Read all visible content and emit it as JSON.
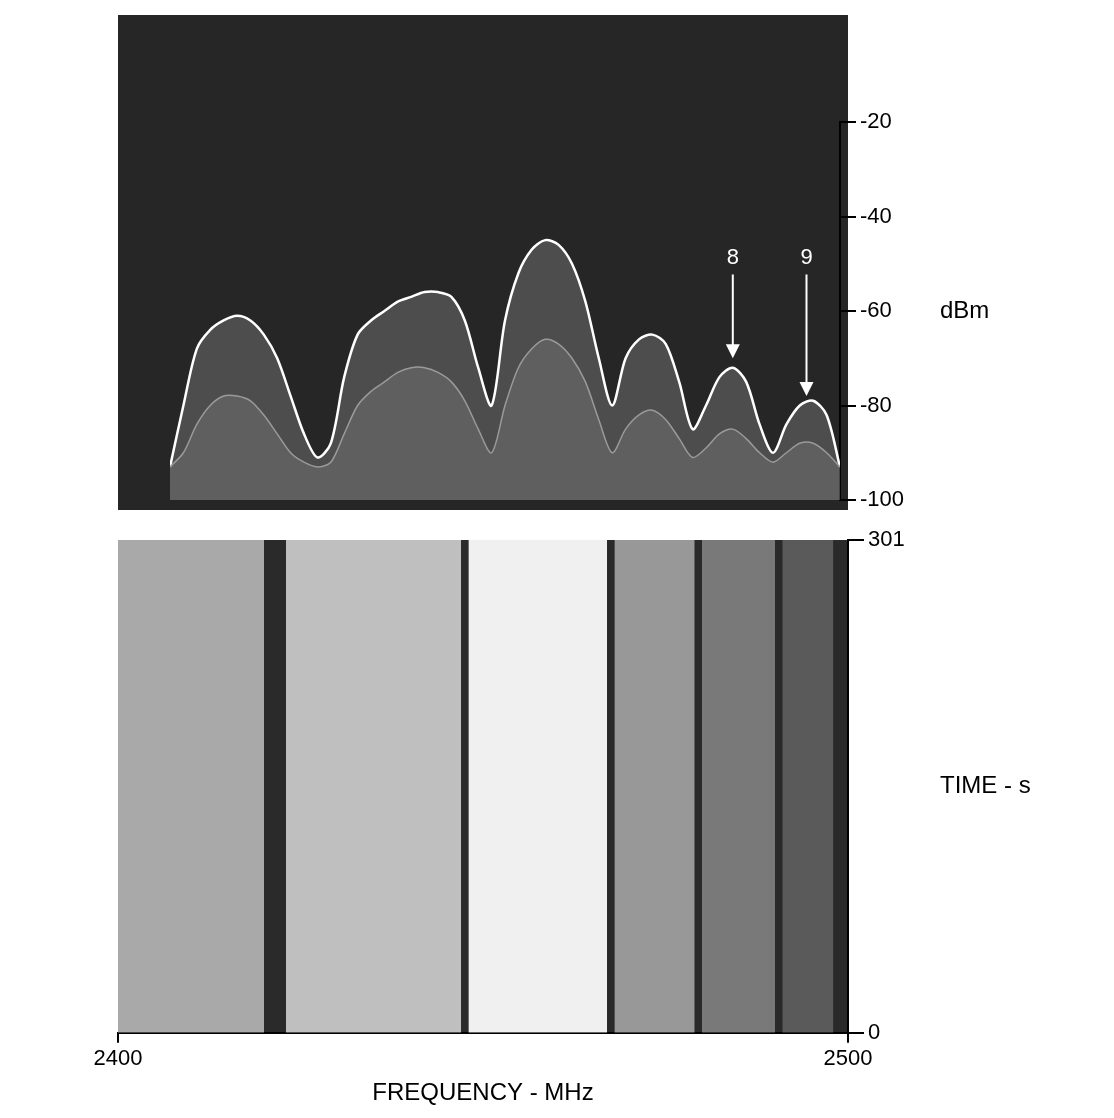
{
  "chart_data": [
    {
      "type": "line",
      "x": [
        2400,
        2402,
        2404,
        2406,
        2408,
        2410,
        2412,
        2414,
        2416,
        2418,
        2420,
        2422,
        2424,
        2426,
        2428,
        2430,
        2432,
        2434,
        2436,
        2438,
        2440,
        2442,
        2444,
        2446,
        2448,
        2450,
        2452,
        2454,
        2456,
        2458,
        2460,
        2462,
        2464,
        2466,
        2468,
        2470,
        2472,
        2474,
        2476,
        2478,
        2480,
        2482,
        2484,
        2486,
        2488,
        2490,
        2492,
        2494,
        2496,
        2498,
        2500
      ],
      "series": [
        {
          "color": "#ffffff",
          "values": [
            -93,
            -80,
            -68,
            -64,
            -62,
            -61,
            -62,
            -65,
            -70,
            -78,
            -86,
            -91,
            -88,
            -74,
            -65,
            -62,
            -60,
            -58,
            -57,
            -56,
            -56,
            -57,
            -62,
            -72,
            -80,
            -62,
            -52,
            -47,
            -45,
            -46,
            -50,
            -58,
            -70,
            -80,
            -70,
            -66,
            -65,
            -67,
            -75,
            -85,
            -80,
            -74,
            -72,
            -75,
            -84,
            -90,
            -84,
            -80,
            -79,
            -82,
            -93
          ]
        },
        {
          "color": "#9a9a9a",
          "values": [
            -93,
            -90,
            -84,
            -80,
            -78,
            -78,
            -79,
            -82,
            -86,
            -90,
            -92,
            -93,
            -92,
            -86,
            -80,
            -77,
            -75,
            -73,
            -72,
            -72,
            -73,
            -75,
            -79,
            -85,
            -90,
            -80,
            -72,
            -68,
            -66,
            -67,
            -70,
            -75,
            -83,
            -90,
            -85,
            -82,
            -81,
            -83,
            -87,
            -91,
            -89,
            -86,
            -85,
            -87,
            -90,
            -92,
            -90,
            -88,
            -88,
            -90,
            -93
          ]
        }
      ],
      "xlim": [
        2400,
        2500
      ],
      "ylim": [
        -100,
        -20
      ],
      "yticks": [
        -20,
        -40,
        -60,
        -80,
        -100
      ],
      "y_label": "dBm",
      "grid": false,
      "tick_labels": "y",
      "annotations": [
        {
          "text": "8",
          "x": 2484,
          "y": -51,
          "arrow_to": -70
        },
        {
          "text": "9",
          "x": 2495,
          "y": -51,
          "arrow_to": -78
        }
      ]
    },
    {
      "type": "heatmap",
      "bands": [
        {
          "start": 2400,
          "end": 2420,
          "level": -61
        },
        {
          "start": 2423,
          "end": 2447,
          "level": -56
        },
        {
          "start": 2448,
          "end": 2467,
          "level": -45
        },
        {
          "start": 2468,
          "end": 2479,
          "level": -65
        },
        {
          "start": 2480,
          "end": 2490,
          "level": -72
        },
        {
          "start": 2491,
          "end": 2498,
          "level": -79
        }
      ],
      "x_label": "FREQUENCY - MHz",
      "y_label": "TIME - s",
      "xlim": [
        2400,
        2500
      ],
      "xticks": [
        2400,
        2500
      ],
      "ylim": [
        0,
        301
      ],
      "yticks": [
        0,
        301
      ],
      "grid": false
    }
  ]
}
